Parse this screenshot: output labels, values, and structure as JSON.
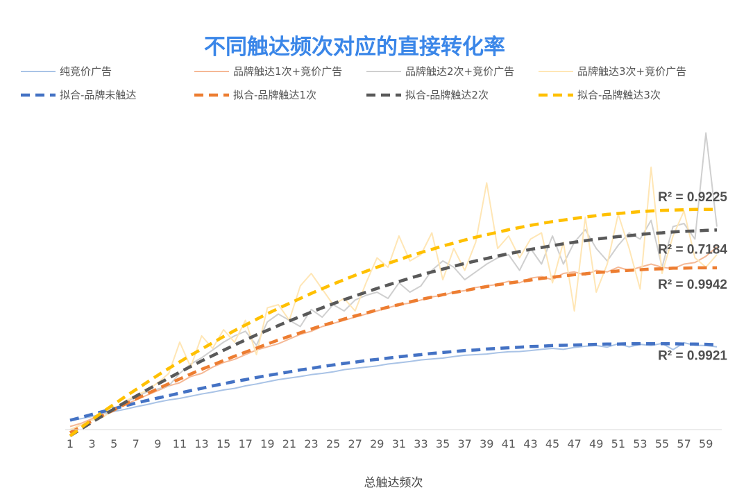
{
  "chart_data": {
    "type": "line",
    "title": "不同触达频次对应的直接转化率",
    "xlabel": "总触达频次",
    "ylabel": "",
    "x_ticks": [
      1,
      3,
      5,
      7,
      9,
      11,
      13,
      15,
      17,
      19,
      21,
      23,
      25,
      27,
      29,
      31,
      33,
      35,
      37,
      39,
      41,
      43,
      45,
      47,
      49,
      51,
      53,
      55,
      57,
      59
    ],
    "xlim": [
      1,
      60
    ],
    "ylim": [
      0,
      100
    ],
    "y_axis_visible": false,
    "grid": false,
    "legend_position": "top",
    "series": [
      {
        "name": "纯竞价广告",
        "style": "solid",
        "color": "#a9c3e6",
        "values": [
          3,
          3.5,
          4.2,
          5,
          5.8,
          6.5,
          7.3,
          8,
          8.8,
          9.5,
          10,
          10.7,
          11.4,
          12,
          12.7,
          13.2,
          14,
          14.6,
          15.3,
          16,
          16.5,
          17,
          17.6,
          18,
          18.5,
          19.2,
          19.6,
          20,
          20.4,
          21,
          21.4,
          21.8,
          22.3,
          22.6,
          22.9,
          23.4,
          23.8,
          24,
          24.2,
          24.6,
          24.9,
          25,
          25.3,
          25.7,
          26,
          25.7,
          26.3,
          26.7,
          26.9,
          26.4,
          27.5,
          26.5,
          27.3,
          26.9,
          27.6,
          25.6,
          27.8,
          27,
          26.9,
          26.5
        ]
      },
      {
        "name": "品牌触达1次+竞价广告",
        "style": "solid",
        "color": "#f5b895",
        "values": [
          1,
          2,
          3.5,
          5,
          6.5,
          8,
          9.5,
          11,
          12.5,
          14,
          15,
          17,
          18,
          20,
          21.5,
          22.5,
          24,
          25.5,
          26.5,
          27.5,
          29,
          30.5,
          31.5,
          33,
          34,
          35,
          36,
          37,
          38,
          39,
          40,
          40.5,
          41.5,
          42.5,
          43,
          44,
          44.5,
          45.5,
          46,
          46.5,
          47.5,
          47,
          48.5,
          49,
          48,
          50,
          50.5,
          49.5,
          51,
          50.5,
          52,
          51,
          52,
          53,
          52,
          51.5,
          53,
          53.5,
          55.5,
          58.5
        ]
      },
      {
        "name": "品牌触达2次+竞价广告",
        "style": "solid",
        "color": "#cfcfcf",
        "values": [
          0,
          1.5,
          3,
          5,
          6.5,
          8.5,
          10.5,
          12,
          13,
          14,
          18,
          21,
          23,
          25.5,
          28,
          30,
          31.5,
          27,
          34.5,
          37,
          35,
          33,
          38.5,
          36,
          40,
          38,
          41.5,
          43,
          44,
          42,
          47,
          44,
          46,
          51,
          54,
          52,
          48,
          50.5,
          53,
          55,
          56,
          51,
          58,
          53,
          62,
          53,
          60,
          64,
          58,
          54,
          59,
          63,
          61,
          67,
          52,
          65,
          66,
          61,
          95,
          65
        ]
      },
      {
        "name": "品牌触达3次+竞价广告",
        "style": "solid",
        "color": "#ffe6b5",
        "values": [
          0,
          1.5,
          3,
          4,
          6.5,
          9,
          11,
          12.5,
          15,
          18,
          28,
          20,
          30,
          26,
          32,
          28,
          35,
          24,
          39,
          40,
          35,
          46,
          50,
          45,
          40,
          42,
          38,
          47,
          55,
          52,
          62,
          54,
          56,
          63,
          48,
          58,
          51,
          60,
          79,
          58,
          62,
          55,
          61,
          63,
          47,
          60,
          38,
          68,
          44,
          53,
          69,
          58,
          45,
          84,
          50,
          62,
          70,
          55,
          52,
          56
        ]
      },
      {
        "name": "拟合-品牌未触达",
        "style": "dashed",
        "color": "#4472c4",
        "values": [
          3,
          3.9,
          4.9,
          5.8,
          6.7,
          7.6,
          8.5,
          9.3,
          10.1,
          10.9,
          11.7,
          12.5,
          13.2,
          14,
          14.7,
          15.4,
          16,
          16.7,
          17.3,
          17.9,
          18.5,
          19.1,
          19.6,
          20.2,
          20.7,
          21.2,
          21.6,
          22.1,
          22.5,
          22.9,
          23.3,
          23.7,
          24,
          24.4,
          24.7,
          25,
          25.3,
          25.5,
          25.8,
          26,
          26.2,
          26.4,
          26.6,
          26.7,
          26.9,
          27,
          27.1,
          27.2,
          27.3,
          27.4,
          27.4,
          27.5,
          27.5,
          27.5,
          27.5,
          27.5,
          27.4,
          27.4,
          27.3,
          27.2
        ]
      },
      {
        "name": "拟合-品牌触达1次",
        "style": "dashed",
        "color": "#ed7d31",
        "values": [
          -1,
          0.9,
          2.7,
          4.6,
          6.3,
          8.1,
          9.8,
          11.4,
          13.1,
          14.7,
          16.2,
          17.8,
          19.3,
          20.7,
          22.1,
          23.5,
          24.8,
          26.1,
          27.4,
          28.7,
          29.9,
          31,
          32.2,
          33.3,
          34.3,
          35.4,
          36.4,
          37.3,
          38.3,
          39.2,
          40,
          40.9,
          41.7,
          42.4,
          43.2,
          43.9,
          44.5,
          45.2,
          45.8,
          46.4,
          46.9,
          47.4,
          47.9,
          48.4,
          48.8,
          49.2,
          49.6,
          49.9,
          50.3,
          50.5,
          50.8,
          51,
          51.2,
          51.4,
          51.5,
          51.7,
          51.7,
          51.8,
          51.8,
          51.8
        ]
      },
      {
        "name": "拟合-品牌触达2次",
        "style": "dashed",
        "color": "#595959",
        "values": [
          -2,
          0.2,
          2.4,
          4.5,
          6.6,
          8.7,
          10.7,
          12.7,
          14.6,
          16.5,
          18.4,
          20.2,
          22,
          23.7,
          25.4,
          27.1,
          28.7,
          30.3,
          31.8,
          33.3,
          34.8,
          36.2,
          37.6,
          39,
          40.3,
          41.6,
          42.8,
          44,
          45.2,
          46.3,
          47.4,
          48.5,
          49.5,
          50.5,
          51.4,
          52.3,
          53.2,
          54,
          54.8,
          55.6,
          56.3,
          57,
          57.7,
          58.3,
          58.9,
          59.5,
          60,
          60.5,
          61,
          61.4,
          61.8,
          62.1,
          62.5,
          62.8,
          63,
          63.3,
          63.5,
          63.6,
          63.8,
          63.9
        ]
      },
      {
        "name": "拟合-品牌触达3次",
        "style": "dashed",
        "color": "#ffc000",
        "values": [
          -2,
          0.6,
          3.2,
          5.7,
          8.1,
          10.5,
          12.8,
          15.1,
          17.4,
          19.6,
          21.7,
          23.8,
          25.8,
          27.8,
          29.8,
          31.7,
          33.5,
          35.3,
          37.1,
          38.8,
          40.4,
          42,
          43.6,
          45.1,
          46.6,
          48,
          49.4,
          50.7,
          52,
          53.2,
          54.4,
          55.6,
          56.7,
          57.7,
          58.8,
          59.7,
          60.7,
          61.6,
          62.4,
          63.2,
          64,
          64.7,
          65.4,
          66,
          66.6,
          67.1,
          67.6,
          68.1,
          68.5,
          68.9,
          69.2,
          69.5,
          69.8,
          70,
          70.2,
          70.3,
          70.4,
          70.5,
          70.5,
          70.5
        ]
      }
    ],
    "annotations": [
      {
        "text": "R² = 0.9225",
        "series": "拟合-品牌触达3次"
      },
      {
        "text": "R² = 0.7184",
        "series": "拟合-品牌触达2次"
      },
      {
        "text": "R² = 0.9942",
        "series": "拟合-品牌触达1次"
      },
      {
        "text": "R² = 0.9921",
        "series": "拟合-品牌未触达"
      }
    ]
  }
}
